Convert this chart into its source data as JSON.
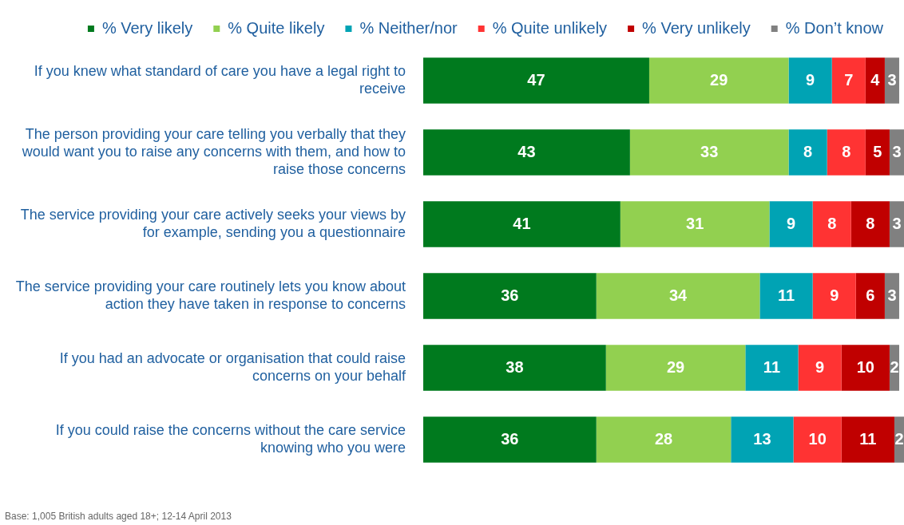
{
  "chart_data": {
    "type": "bar",
    "orientation": "horizontal",
    "stacked": true,
    "data_labels": true,
    "legend": "top",
    "tick_labels": "y",
    "xlim": [
      0,
      100
    ],
    "categories": [
      "If you knew what standard of care you have a legal right to receive",
      "The person providing your care telling you verbally that they would want you to raise any concerns with them, and how to raise those concerns",
      "The service providing your care actively seeks your views by for example, sending you a questionnaire",
      "The service providing your care routinely lets you know about action they have taken in response to concerns",
      "If you had an advocate or organisation that could raise concerns on your behalf",
      "If you could raise the concerns without the care service knowing who you were"
    ],
    "series": [
      {
        "name": "% Very likely",
        "color": "#007a1e",
        "values": [
          47,
          43,
          41,
          36,
          38,
          36
        ]
      },
      {
        "name": "% Quite likely",
        "color": "#92d050",
        "values": [
          29,
          33,
          31,
          34,
          29,
          28
        ]
      },
      {
        "name": "% Neither/nor",
        "color": "#00a3b4",
        "values": [
          9,
          8,
          9,
          11,
          11,
          13
        ]
      },
      {
        "name": "% Quite unlikely",
        "color": "#ff3333",
        "values": [
          7,
          8,
          8,
          9,
          9,
          10
        ]
      },
      {
        "name": "% Very unlikely",
        "color": "#c00000",
        "values": [
          4,
          5,
          8,
          6,
          10,
          11
        ]
      },
      {
        "name": "% Don’t know",
        "color": "#808080",
        "values": [
          3,
          3,
          3,
          3,
          2,
          2
        ]
      }
    ],
    "annotations": [
      "Base: 1,005 British adults aged 18+; 12-14 April 2013"
    ]
  }
}
